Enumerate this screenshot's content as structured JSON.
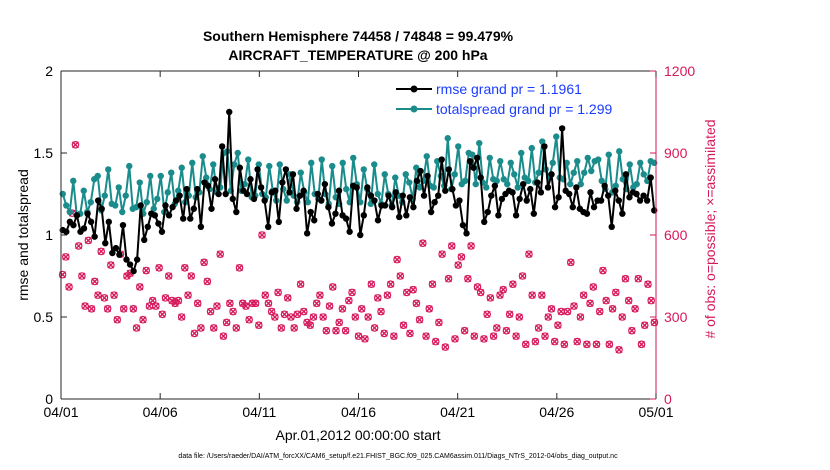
{
  "chart_data": {
    "type": "line",
    "title_line1": "Southern Hemisphere 74458 / 74848 = 99.479%",
    "title_line2": "AIRCRAFT_TEMPERATURE @ 200 hPa",
    "xlabel": "Apr.01,2012 00:00:00 start",
    "ylabel_left": "rmse and totalspread",
    "ylabel_right": "# of obs: o=possible; ×=assimilated",
    "footnote": "data file: /Users/raeder/DAI/ATM_forcXX/CAM6_setup/f.e21.FHIST_BGC.f09_025.CAM6assim.011/Diags_NTrS_2012-04/obs_diag_output.nc",
    "x_range_days": [
      0,
      30
    ],
    "x_ticks": [
      0,
      5,
      10,
      15,
      20,
      25,
      30
    ],
    "x_tick_labels": [
      "04/01",
      "04/06",
      "04/11",
      "04/16",
      "04/21",
      "04/26",
      "05/01"
    ],
    "ylim_left": [
      0,
      2
    ],
    "y_ticks_left": [
      "0",
      "0.5",
      "1",
      "1.5",
      "2"
    ],
    "ylim_right": [
      0,
      1200
    ],
    "y_ticks_right": [
      "0",
      "300",
      "600",
      "900",
      "1200"
    ],
    "colors": {
      "rmse": "#000000",
      "spread": "#1a8c8c",
      "obs": "#d6195c",
      "legend_text": "#1a3cff"
    },
    "series": [
      {
        "name": "rmse grand pr = 1.1961",
        "key": "rmse",
        "values": [
          1.03,
          1.02,
          1.08,
          1.06,
          1.12,
          1.02,
          1.04,
          1.13,
          1.08,
          0.99,
          1.21,
          1.16,
          0.95,
          1.08,
          0.89,
          0.92,
          0.88,
          1.06,
          0.85,
          0.82,
          0.78,
          0.85,
          1.18,
          0.97,
          1.05,
          1.13,
          1.12,
          1.07,
          1.02,
          1.18,
          1.12,
          1.17,
          1.21,
          1.24,
          1.1,
          1.28,
          1.1,
          1.16,
          1.28,
          1.05,
          1.32,
          1.3,
          1.16,
          1.34,
          1.25,
          1.54,
          1.25,
          1.75,
          1.22,
          1.14,
          1.41,
          1.27,
          1.25,
          1.34,
          1.22,
          1.4,
          1.29,
          1.21,
          1.05,
          1.26,
          1.27,
          1.08,
          1.32,
          1.4,
          1.26,
          1.37,
          1.16,
          1.24,
          1.27,
          1.01,
          1.14,
          1.09,
          1.25,
          1.21,
          1.31,
          1.17,
          1.07,
          1.13,
          1.27,
          1.12,
          1.1,
          1.02,
          1.3,
          1.29,
          1.0,
          1.12,
          1.29,
          1.24,
          1.21,
          1.09,
          1.18,
          1.18,
          1.24,
          1.17,
          1.26,
          1.11,
          1.24,
          1.12,
          1.23,
          1.17,
          1.33,
          1.39,
          1.24,
          1.36,
          1.14,
          1.2,
          1.24,
          1.46,
          1.27,
          1.4,
          1.28,
          1.18,
          1.21,
          1.06,
          1.01,
          1.45,
          1.41,
          1.47,
          1.35,
          1.08,
          1.14,
          1.24,
          1.3,
          1.12,
          1.22,
          1.25,
          1.27,
          1.26,
          1.12,
          1.22,
          1.31,
          1.21,
          1.28,
          1.13,
          1.32,
          1.26,
          1.54,
          1.29,
          1.37,
          1.17,
          1.23,
          1.65,
          1.27,
          1.25,
          1.17,
          1.29,
          1.16,
          1.14,
          1.13,
          1.26,
          1.17,
          1.21,
          1.21,
          1.3,
          1.24,
          1.05,
          1.27,
          1.21,
          1.13,
          1.37,
          1.23,
          1.26,
          1.25,
          1.21,
          1.24,
          1.21,
          1.35,
          1.15
        ]
      },
      {
        "name": "totalspread grand pr = 1.299",
        "key": "spread",
        "values": [
          1.25,
          1.18,
          1.14,
          1.33,
          1.12,
          1.13,
          1.27,
          1.14,
          1.2,
          1.34,
          1.36,
          1.15,
          1.24,
          1.4,
          1.19,
          1.18,
          1.29,
          1.14,
          1.24,
          1.42,
          1.16,
          1.17,
          1.32,
          1.13,
          1.2,
          1.36,
          1.16,
          1.22,
          1.36,
          1.14,
          1.26,
          1.38,
          1.19,
          1.27,
          1.41,
          1.2,
          1.24,
          1.44,
          1.23,
          1.26,
          1.48,
          1.35,
          1.28,
          1.43,
          1.26,
          1.29,
          1.5,
          1.51,
          1.27,
          1.43,
          1.5,
          1.27,
          1.31,
          1.46,
          1.23,
          1.24,
          1.43,
          1.25,
          1.23,
          1.42,
          1.27,
          1.21,
          1.43,
          1.28,
          1.21,
          1.37,
          1.24,
          1.2,
          1.38,
          1.26,
          1.2,
          1.44,
          1.25,
          1.22,
          1.46,
          1.25,
          1.19,
          1.42,
          1.23,
          1.19,
          1.44,
          1.28,
          1.2,
          1.47,
          1.31,
          1.2,
          1.4,
          1.28,
          1.19,
          1.43,
          1.25,
          1.19,
          1.37,
          1.25,
          1.18,
          1.35,
          1.24,
          1.2,
          1.37,
          1.32,
          1.22,
          1.41,
          1.29,
          1.33,
          1.48,
          1.3,
          1.29,
          1.45,
          1.36,
          1.3,
          1.59,
          1.28,
          1.37,
          1.54,
          1.31,
          1.33,
          1.5,
          1.49,
          1.31,
          1.56,
          1.32,
          1.29,
          1.47,
          1.34,
          1.33,
          1.45,
          1.34,
          1.31,
          1.44,
          1.37,
          1.29,
          1.5,
          1.35,
          1.33,
          1.53,
          1.32,
          1.38,
          1.57,
          1.4,
          1.35,
          1.44,
          1.6,
          1.35,
          1.34,
          1.44,
          1.31,
          1.38,
          1.45,
          1.31,
          1.38,
          1.47,
          1.39,
          1.45,
          1.46,
          1.33,
          1.28,
          1.49,
          1.26,
          1.3,
          1.51,
          1.34,
          1.28,
          1.43,
          1.29,
          1.31,
          1.44,
          1.37,
          1.33,
          1.45,
          1.44
        ]
      }
    ],
    "obs_assimilated": [
      455,
      520,
      410,
      680,
      930,
      560,
      450,
      340,
      580,
      330,
      430,
      380,
      540,
      370,
      330,
      490,
      380,
      290,
      530,
      330,
      450,
      460,
      330,
      260,
      410,
      290,
      470,
      340,
      360,
      340,
      480,
      310,
      370,
      450,
      360,
      350,
      360,
      300,
      480,
      380,
      450,
      240,
      350,
      260,
      500,
      430,
      320,
      260,
      340,
      530,
      230,
      280,
      350,
      320,
      260,
      480,
      350,
      340,
      290,
      350,
      350,
      270,
      600,
      380,
      350,
      320,
      300,
      390,
      260,
      310,
      370,
      300,
      260,
      310,
      420,
      320,
      280,
      270,
      300,
      350,
      380,
      300,
      250,
      340,
      410,
      250,
      280,
      330,
      250,
      360,
      390,
      300,
      230,
      330,
      220,
      300,
      420,
      260,
      370,
      320,
      240,
      380,
      420,
      230,
      510,
      450,
      270,
      390,
      240,
      400,
      350,
      290,
      570,
      230,
      330,
      420,
      210,
      280,
      530,
      190,
      440,
      560,
      220,
      490,
      520,
      250,
      440,
      560,
      230,
      410,
      390,
      220,
      310,
      370,
      230,
      260,
      380,
      400,
      250,
      310,
      420,
      230,
      300,
      450,
      200,
      530,
      380,
      210,
      260,
      380,
      230,
      300,
      330,
      210,
      270,
      320,
      200,
      320,
      500,
      340,
      210,
      300,
      380,
      200,
      350,
      410,
      200,
      320,
      470,
      360,
      200,
      330,
      390,
      180,
      300,
      440,
      360,
      250,
      330,
      440,
      200,
      270,
      420,
      360,
      280
    ]
  },
  "legend": {
    "rmse_label": "rmse grand pr = 1.1961",
    "spread_label": "totalspread grand pr = 1.299"
  }
}
